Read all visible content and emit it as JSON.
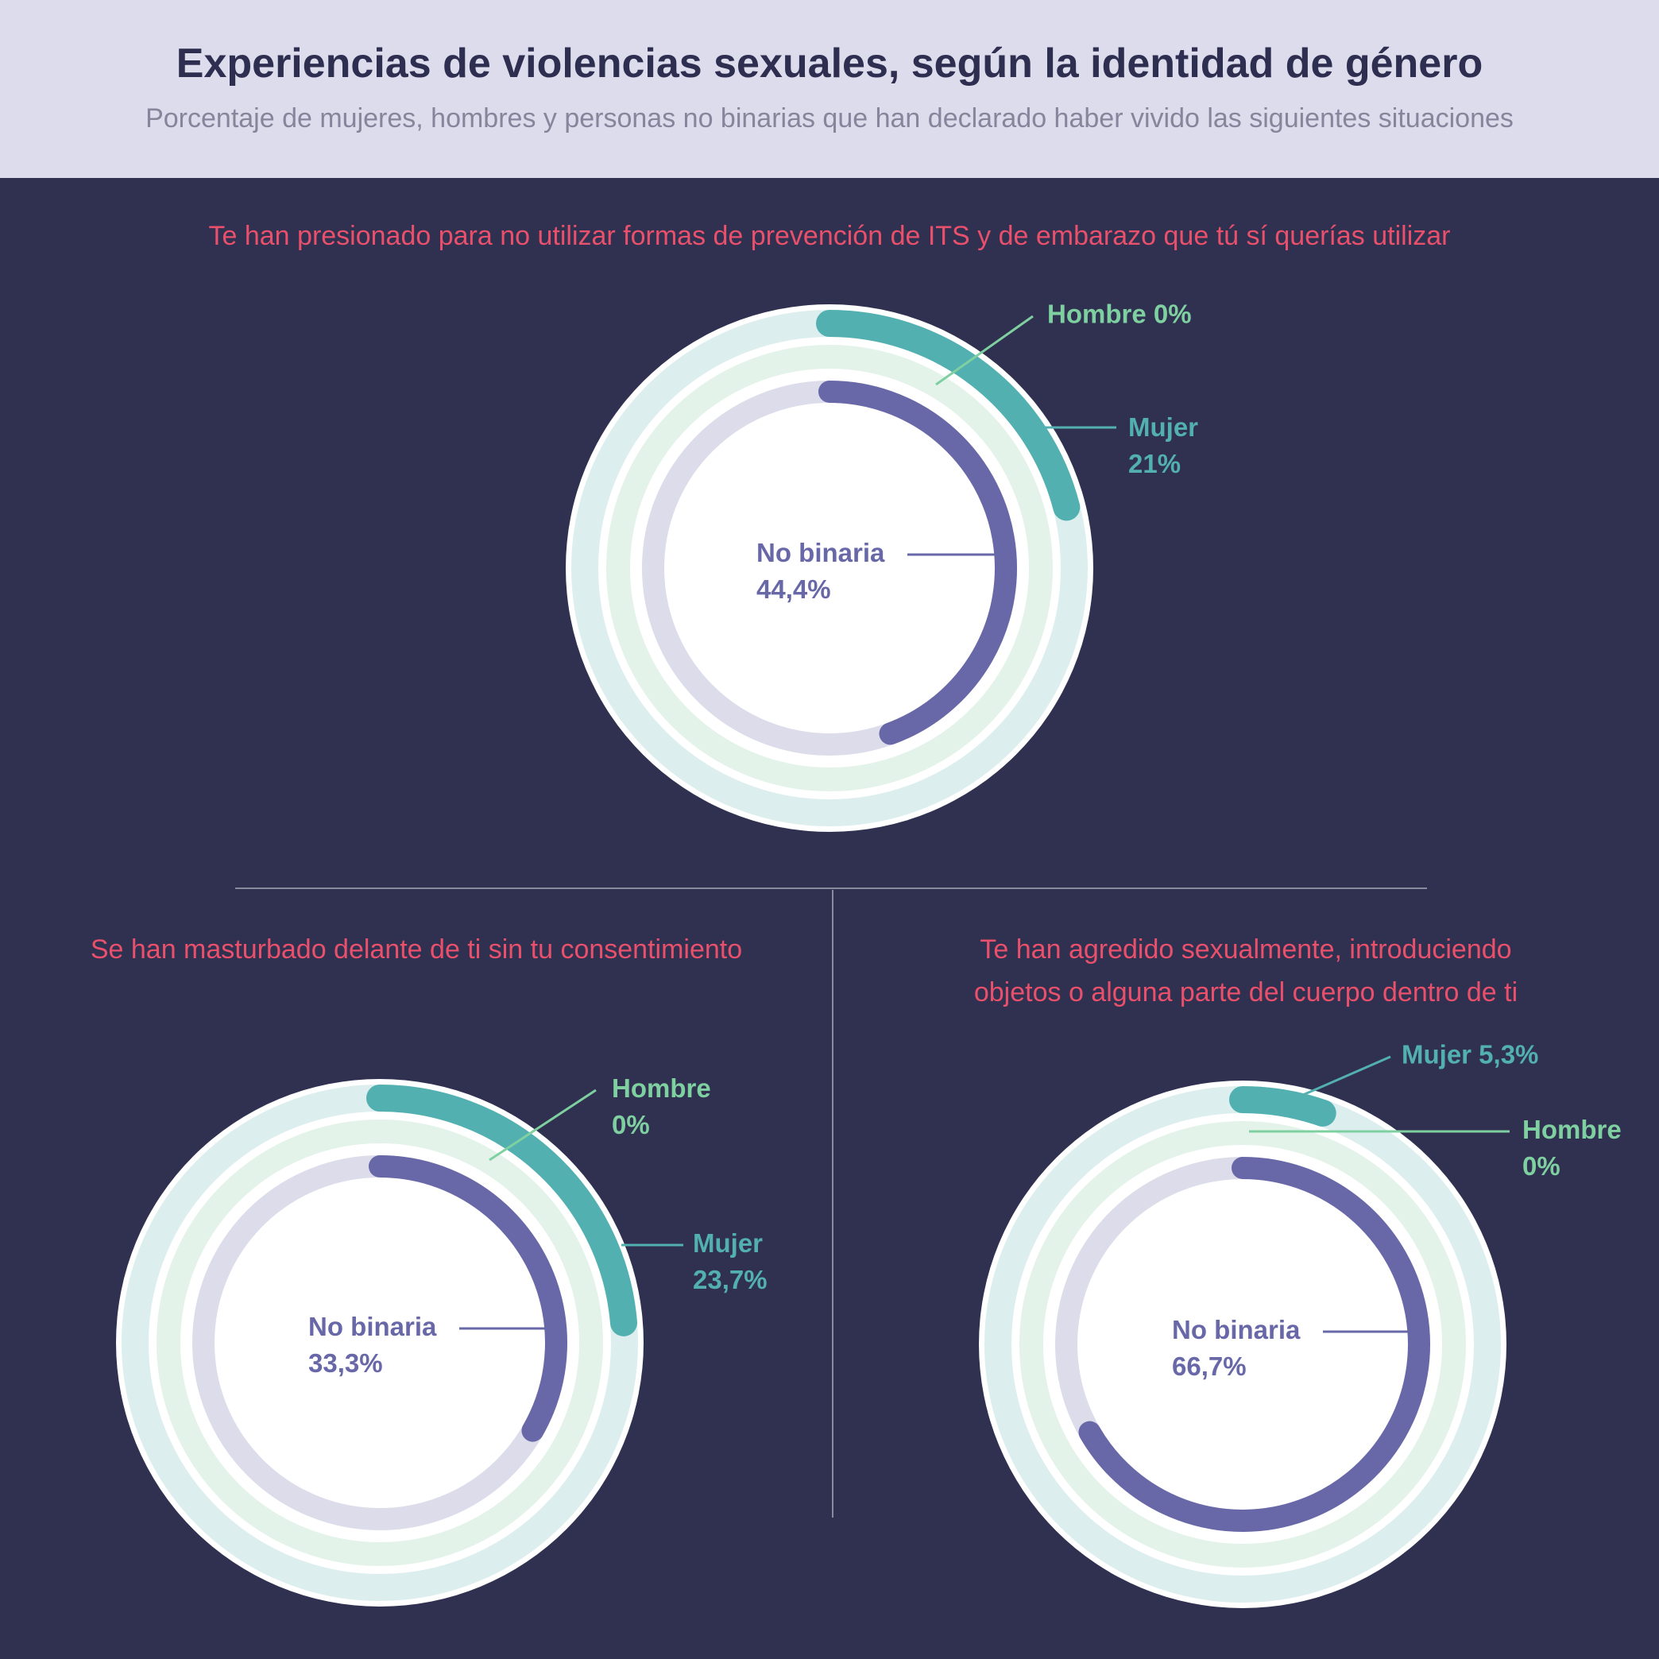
{
  "header": {
    "title": "Experiencias de violencias sexuales, según la identidad de género",
    "subtitle": "Porcentaje de mujeres, hombres y personas no binarias que han declarado haber vivido las siguientes situaciones"
  },
  "colors": {
    "hombre": "#7fd0a0",
    "mujer": "#52b0b0",
    "no_binaria": "#6868a8",
    "question": "#e8506c",
    "background": "#303050",
    "header_bg": "#dcdcec"
  },
  "chart_data": [
    {
      "type": "radial-bar",
      "title": "Te han presionado para no utilizar formas de prevención de ITS y de embarazo que tú sí querías utilizar",
      "series": [
        {
          "name": "Mujer",
          "value": 21,
          "label": "21%"
        },
        {
          "name": "Hombre",
          "value": 0,
          "label": "0%"
        },
        {
          "name": "No binaria",
          "value": 44.4,
          "label": "44,4%"
        }
      ]
    },
    {
      "type": "radial-bar",
      "title": "Se han masturbado delante de ti sin tu consentimiento",
      "series": [
        {
          "name": "Mujer",
          "value": 23.7,
          "label": "23,7%"
        },
        {
          "name": "Hombre",
          "value": 0,
          "label": "0%"
        },
        {
          "name": "No binaria",
          "value": 33.3,
          "label": "33,3%"
        }
      ]
    },
    {
      "type": "radial-bar",
      "title_lines": [
        "Te han agredido sexualmente, introduciendo",
        "objetos o alguna parte del cuerpo dentro de ti"
      ],
      "series": [
        {
          "name": "Mujer",
          "value": 5.3,
          "label": "5,3%"
        },
        {
          "name": "Hombre",
          "value": 0,
          "label": "0%"
        },
        {
          "name": "No binaria",
          "value": 66.7,
          "label": "66,7%"
        }
      ]
    }
  ]
}
